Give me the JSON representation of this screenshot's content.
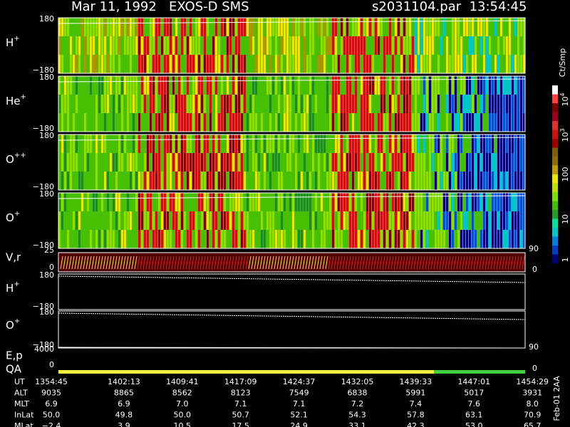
{
  "header": {
    "title": "Mar 11, 1992   EXOS-D SMS",
    "file": "s2031104.par  13:54:45"
  },
  "panels": [
    {
      "label": "H",
      "sup": "+",
      "top": "180",
      "bottom": "−180"
    },
    {
      "label": "He",
      "sup": "+",
      "top": "180",
      "bottom": "−180"
    },
    {
      "label": "O",
      "sup": "++",
      "top": "180",
      "bottom": "−180"
    },
    {
      "label": "O",
      "sup": "+",
      "top": "180",
      "bottom": "−180"
    }
  ],
  "vr": {
    "label": "V,r",
    "left_top": "25",
    "left_bottom": "0",
    "right_top": "90",
    "right_bottom": "0"
  },
  "lower": [
    {
      "label": "H",
      "sup": "+",
      "top": "180",
      "bottom": "−180"
    },
    {
      "label": "O",
      "sup": "+",
      "top": "180",
      "bottom": "−180"
    }
  ],
  "ep": {
    "label": "E,p",
    "left_top": "4000",
    "left_bottom": "0",
    "right_top": "90",
    "right_bottom": "0"
  },
  "qa": {
    "label": "QA"
  },
  "colorbar": {
    "title": "Ct/Smp",
    "labels": [
      {
        "text": "10",
        "sup": "4"
      },
      {
        "text": "10",
        "sup": "3"
      },
      {
        "text": "100",
        "sup": null
      },
      {
        "text": "10",
        "sup": null
      },
      {
        "text": "1",
        "sup": null
      }
    ]
  },
  "table": {
    "rows": [
      {
        "label": "UT",
        "values": [
          "1354:45",
          "1402:13",
          "1409:41",
          "1417:09",
          "1424:37",
          "1432:05",
          "1439:33",
          "1447:01",
          "1454:29"
        ]
      },
      {
        "label": "ALT",
        "values": [
          "9035",
          "8865",
          "8562",
          "8123",
          "7549",
          "6838",
          "5991",
          "5017",
          "3931"
        ]
      },
      {
        "label": "MLT",
        "values": [
          "6.9",
          "6.9",
          "7.0",
          "7.1",
          "7.1",
          "7.2",
          "7.4",
          "7.6",
          "8.0"
        ]
      },
      {
        "label": "InLat",
        "values": [
          "50.0",
          "49.8",
          "50.0",
          "50.7",
          "52.1",
          "54.3",
          "57.8",
          "63.1",
          "70.9"
        ]
      },
      {
        "label": "MLat",
        "values": [
          "−2.4",
          "3.9",
          "10.5",
          "17.5",
          "24.9",
          "33.1",
          "42.3",
          "53.0",
          "65.7"
        ]
      }
    ]
  },
  "footer": {
    "stamp": "Feb-01 2AA"
  }
}
